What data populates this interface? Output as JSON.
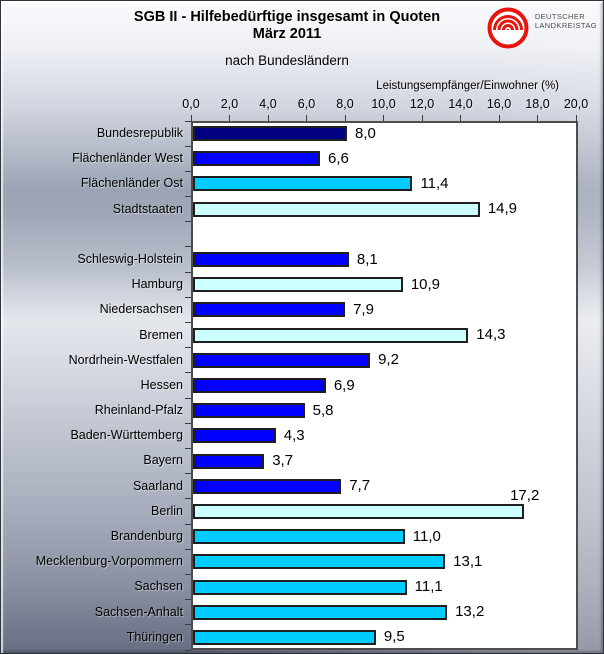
{
  "header": {
    "title_line1": "SGB II - Hilfebedürftige insgesamt in Quoten",
    "title_line2": "März 2011",
    "subtitle": "nach Bundesländern"
  },
  "logo": {
    "line1": "DEUTSCHER",
    "line2": "LANDKREISTAG",
    "accent_color": "#e8150d"
  },
  "axis": {
    "title": "Leistungsempfänger/Einwohner (%)"
  },
  "chart_data": {
    "type": "bar",
    "orientation": "horizontal",
    "title": "SGB II - Hilfebedürftige insgesamt in Quoten März 2011 nach Bundesländern",
    "xlabel": "Leistungsempfänger/Einwohner (%)",
    "xlim": [
      0,
      20
    ],
    "x_ticks": [
      0,
      2,
      4,
      6,
      8,
      10,
      12,
      14,
      16,
      18,
      20
    ],
    "x_tick_labels": [
      "0,0",
      "2,0",
      "4,0",
      "6,0",
      "8,0",
      "10,0",
      "12,0",
      "14,0",
      "16,0",
      "18,0",
      "20,0"
    ],
    "grid": false,
    "legend": "none",
    "colors": {
      "bund": "#000080",
      "west": "#0000FF",
      "ost": "#00CCFF",
      "stadt": "#CCFFFF",
      "spacer": "none"
    },
    "rows": [
      {
        "label": "Bundesrepublik",
        "value": 8.0,
        "display": "8,0",
        "group": "bund"
      },
      {
        "label": "Flächenländer West",
        "value": 6.6,
        "display": "6,6",
        "group": "west"
      },
      {
        "label": "Flächenländer Ost",
        "value": 11.4,
        "display": "11,4",
        "group": "ost"
      },
      {
        "label": "Stadtstaaten",
        "value": 14.9,
        "display": "14,9",
        "group": "stadt"
      },
      {
        "label": "",
        "value": null,
        "display": "",
        "group": "spacer"
      },
      {
        "label": "Schleswig-Holstein",
        "value": 8.1,
        "display": "8,1",
        "group": "west"
      },
      {
        "label": "Hamburg",
        "value": 10.9,
        "display": "10,9",
        "group": "stadt"
      },
      {
        "label": "Niedersachsen",
        "value": 7.9,
        "display": "7,9",
        "group": "west"
      },
      {
        "label": "Bremen",
        "value": 14.3,
        "display": "14,3",
        "group": "stadt"
      },
      {
        "label": "Nordrhein-Westfalen",
        "value": 9.2,
        "display": "9,2",
        "group": "west"
      },
      {
        "label": "Hessen",
        "value": 6.9,
        "display": "6,9",
        "group": "west"
      },
      {
        "label": "Rheinland-Pfalz",
        "value": 5.8,
        "display": "5,8",
        "group": "west"
      },
      {
        "label": "Baden-Württemberg",
        "value": 4.3,
        "display": "4,3",
        "group": "west"
      },
      {
        "label": "Bayern",
        "value": 3.7,
        "display": "3,7",
        "group": "west"
      },
      {
        "label": "Saarland",
        "value": 7.7,
        "display": "7,7",
        "group": "west"
      },
      {
        "label": "Berlin",
        "value": 17.2,
        "display": "17,2",
        "group": "stadt",
        "label_above": true
      },
      {
        "label": "Brandenburg",
        "value": 11.0,
        "display": "11,0",
        "group": "ost"
      },
      {
        "label": "Mecklenburg-Vorpommern",
        "value": 13.1,
        "display": "13,1",
        "group": "ost"
      },
      {
        "label": "Sachsen",
        "value": 11.1,
        "display": "11,1",
        "group": "ost"
      },
      {
        "label": "Sachsen-Anhalt",
        "value": 13.2,
        "display": "13,2",
        "group": "ost"
      },
      {
        "label": "Thüringen",
        "value": 9.5,
        "display": "9,5",
        "group": "ost"
      }
    ]
  }
}
